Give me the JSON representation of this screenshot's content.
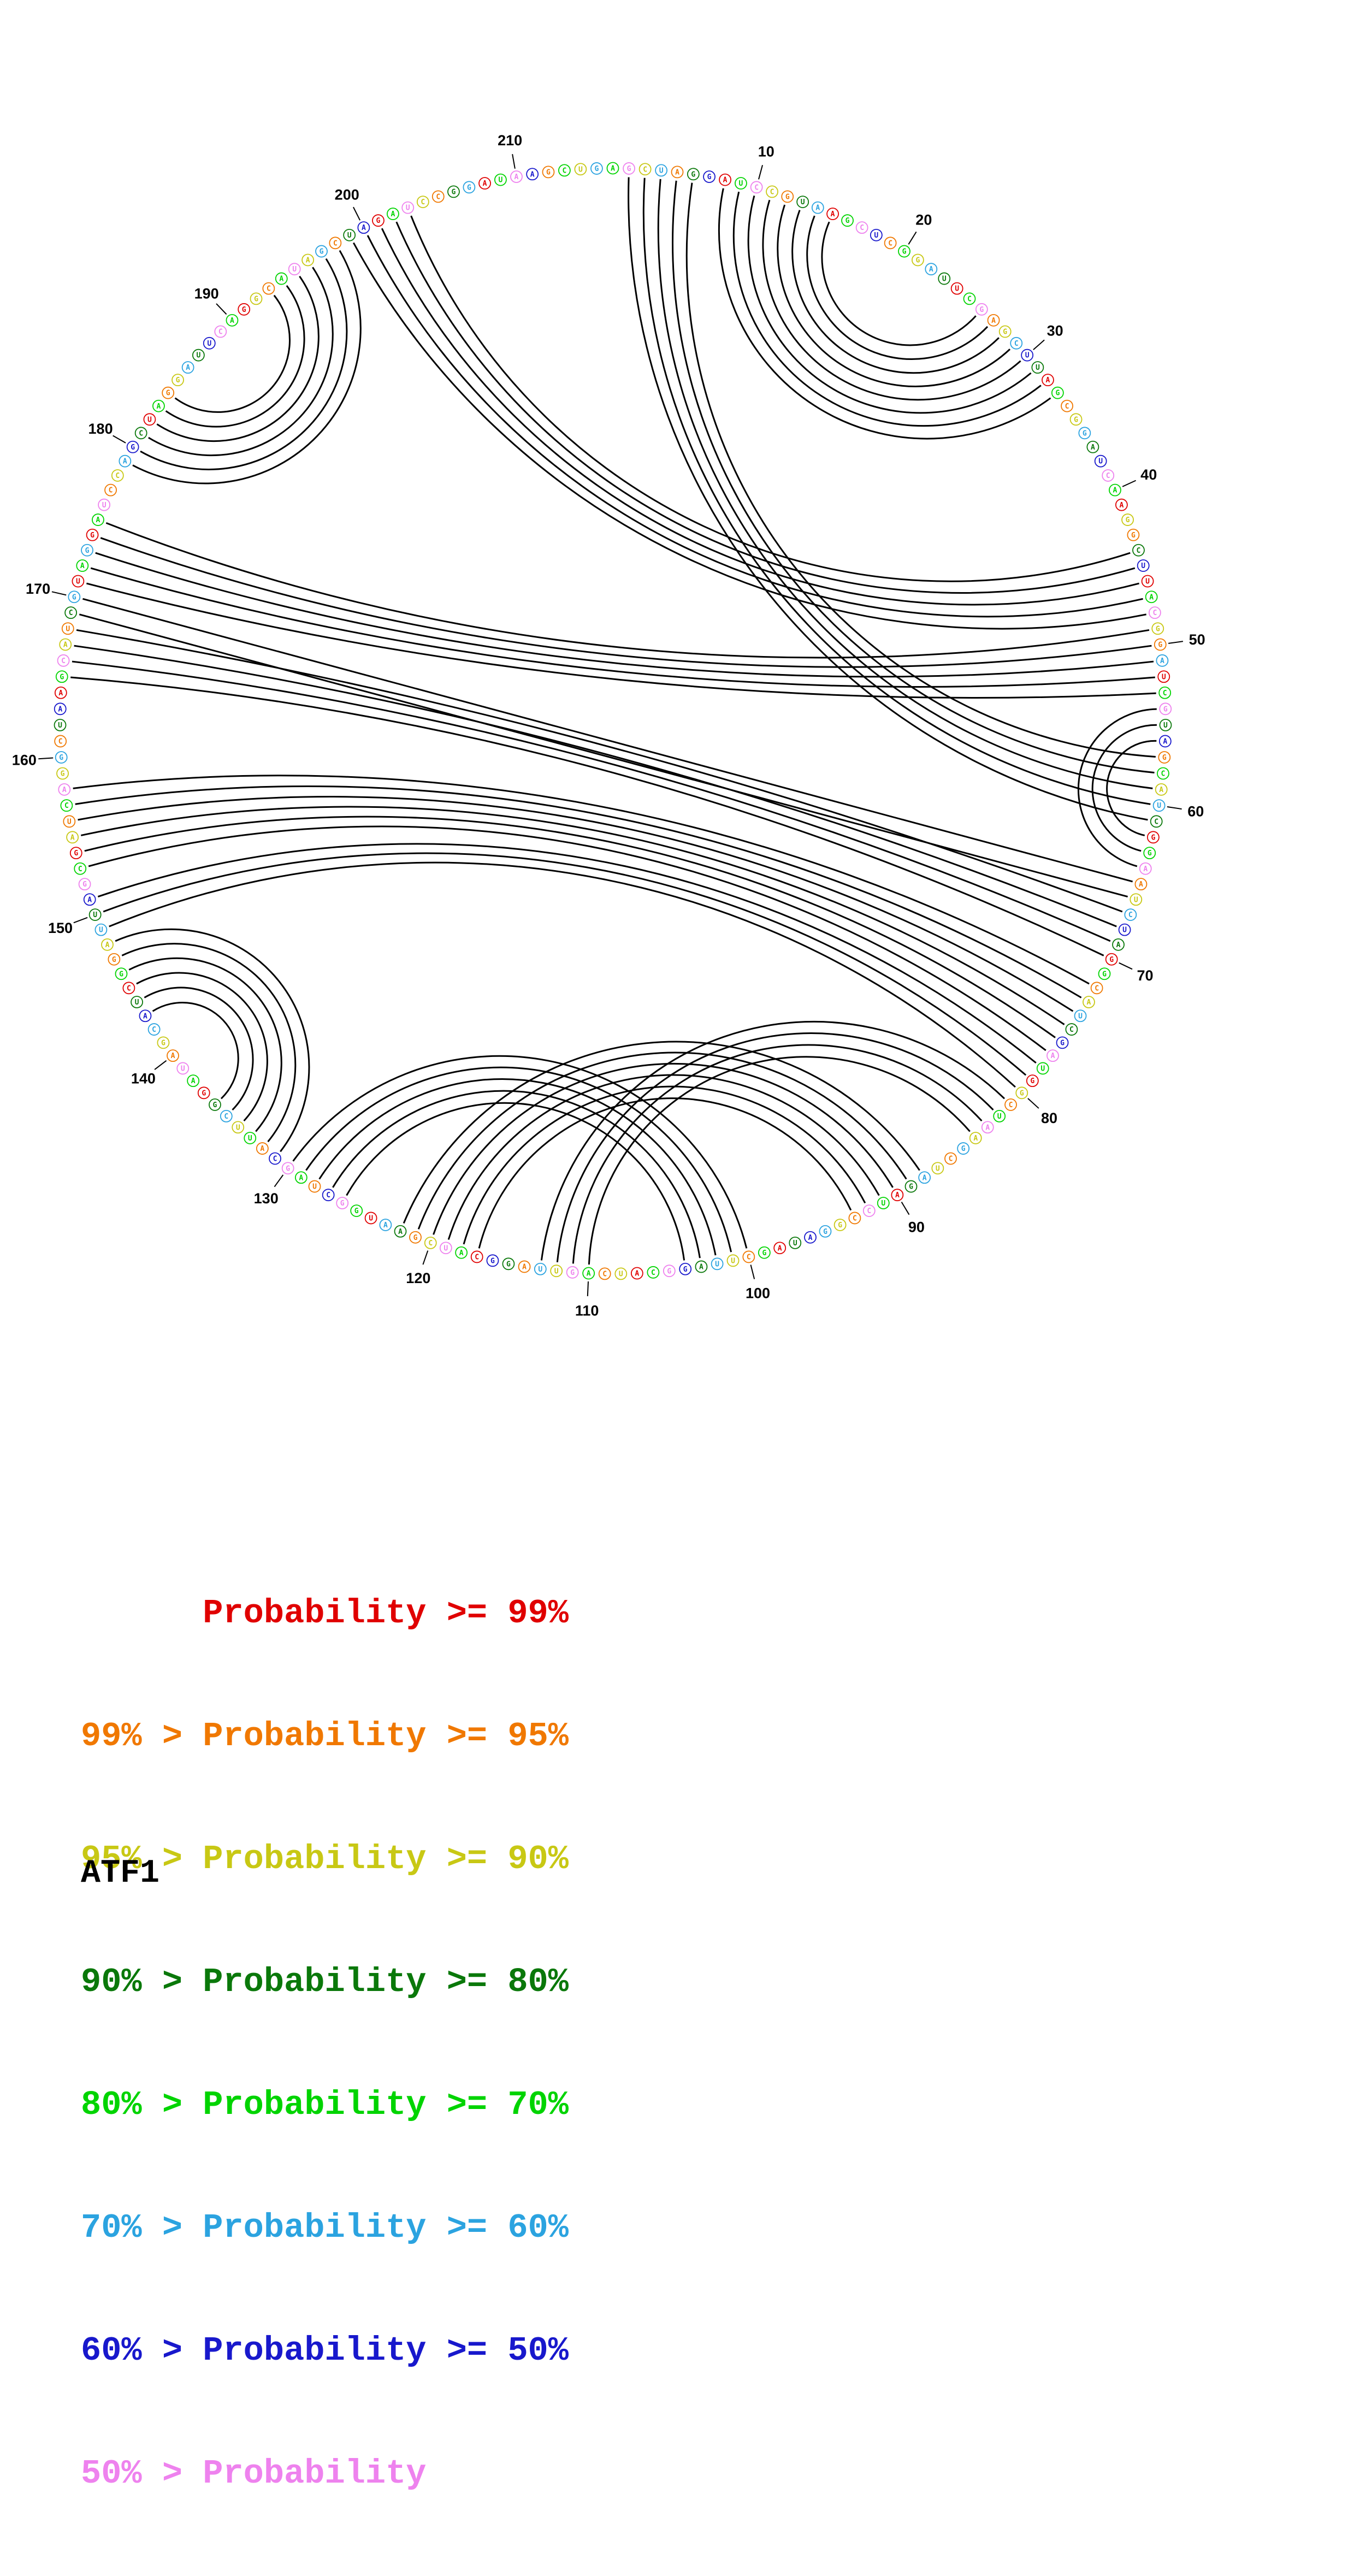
{
  "title": "ATF1",
  "legend": {
    "lines": [
      {
        "label": "      Probability >= 99%",
        "color": "#e00000"
      },
      {
        "label": "99% > Probability >= 95%",
        "color": "#f07800"
      },
      {
        "label": "95% > Probability >= 90%",
        "color": "#c8c814"
      },
      {
        "label": "90% > Probability >= 80%",
        "color": "#0a780a"
      },
      {
        "label": "80% > Probability >= 70%",
        "color": "#00d400"
      },
      {
        "label": "70% > Probability >= 60%",
        "color": "#2ba3e0"
      },
      {
        "label": "60% > Probability >= 50%",
        "color": "#1818cc"
      },
      {
        "label": "50% > Probability",
        "color": "#ee82ee"
      }
    ]
  },
  "chart_data": {
    "type": "circular-arc-plot",
    "title": "ATF1",
    "sequence": "AGCUAGGAUCCGUAAGCUCGGAUUCGAGCUUAGCGGAUCAAGGCUUACGGAUCGUAGCAUCGGAAUCUAGGCAUCGAUGGCUAAGCUAGAUCCGGAUAGCUUAGGCAUCAGUUAGGCAUCGAAUGGCUAGCAUUCGGAUAGCAUCGGAUUAGCGAUCAGGCUAAGCAUCGUAGGAUCCAGCUAGGAUUCAGGCAUAGCUAGAUCCGGAUAAGCUG",
    "nucleotide_colors": "47251360472135047614253047125630412536740213604721504736142530471256304125367402147251253047125630412536740214725136047213504761476142530471256304125367402147251360472135045047125630412536740214725136047213504761425",
    "palette": [
      "#e00000",
      "#f07800",
      "#c8c814",
      "#0a780a",
      "#00d400",
      "#2ba3e0",
      "#1818cc",
      "#ee82ee"
    ],
    "arc_color": "#000000",
    "tick_labels": [
      10,
      20,
      30,
      40,
      50,
      60,
      70,
      80,
      90,
      100,
      110,
      120,
      130,
      140,
      150,
      160,
      170,
      180,
      190,
      200,
      210
    ],
    "pairs": [
      [
        8,
        33
      ],
      [
        9,
        32
      ],
      [
        10,
        31
      ],
      [
        11,
        30
      ],
      [
        12,
        29
      ],
      [
        13,
        28
      ],
      [
        14,
        27
      ],
      [
        15,
        26
      ],
      [
        2,
        61
      ],
      [
        3,
        60
      ],
      [
        4,
        59
      ],
      [
        5,
        58
      ],
      [
        6,
        57
      ],
      [
        199,
        48
      ],
      [
        200,
        47
      ],
      [
        201,
        46
      ],
      [
        202,
        45
      ],
      [
        203,
        44
      ],
      [
        49,
        175
      ],
      [
        50,
        174
      ],
      [
        51,
        173
      ],
      [
        52,
        172
      ],
      [
        53,
        171
      ],
      [
        54,
        64
      ],
      [
        55,
        63
      ],
      [
        56,
        62
      ],
      [
        65,
        170
      ],
      [
        66,
        169
      ],
      [
        67,
        168
      ],
      [
        68,
        167
      ],
      [
        69,
        166
      ],
      [
        70,
        165
      ],
      [
        72,
        158
      ],
      [
        73,
        157
      ],
      [
        74,
        156
      ],
      [
        75,
        155
      ],
      [
        76,
        154
      ],
      [
        77,
        153
      ],
      [
        78,
        151
      ],
      [
        79,
        150
      ],
      [
        80,
        149
      ],
      [
        81,
        113
      ],
      [
        82,
        112
      ],
      [
        83,
        111
      ],
      [
        84,
        110
      ],
      [
        88,
        122
      ],
      [
        89,
        121
      ],
      [
        90,
        120
      ],
      [
        91,
        119
      ],
      [
        92,
        118
      ],
      [
        93,
        117
      ],
      [
        100,
        130
      ],
      [
        101,
        129
      ],
      [
        102,
        128
      ],
      [
        103,
        127
      ],
      [
        104,
        126
      ],
      [
        131,
        148
      ],
      [
        132,
        147
      ],
      [
        133,
        146
      ],
      [
        134,
        145
      ],
      [
        135,
        144
      ],
      [
        136,
        143
      ],
      [
        179,
        198
      ],
      [
        180,
        197
      ],
      [
        181,
        196
      ],
      [
        182,
        195
      ],
      [
        183,
        194
      ],
      [
        184,
        193
      ]
    ],
    "center": [
      1122,
      1320
    ],
    "radius": 1012
  }
}
